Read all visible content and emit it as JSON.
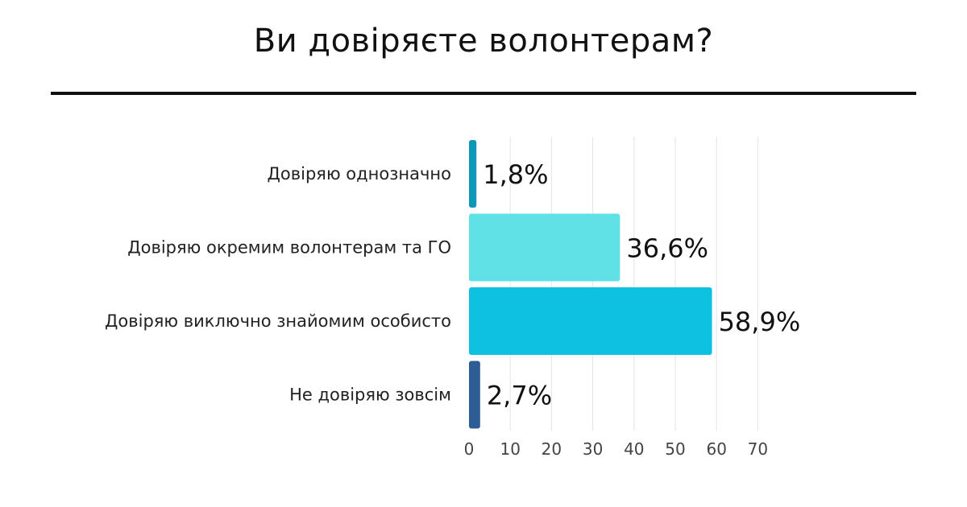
{
  "header": {
    "title": "Ви довіряєте волонтерам?"
  },
  "chart_data": {
    "type": "bar",
    "orientation": "horizontal",
    "categories": [
      "Довіряю однозначно",
      "Довіряю окремим волонтерам та ГО",
      "Довіряю виключно знайомим особисто",
      "Не довіряю зовсім"
    ],
    "values": [
      1.8,
      36.6,
      58.9,
      2.7
    ],
    "value_labels": [
      "1,8%",
      "36,6%",
      "58,9%",
      "2,7%"
    ],
    "bar_colors": [
      "#0e97b6",
      "#5fe1e6",
      "#0ec1e0",
      "#2e5c94"
    ],
    "x_ticks": [
      0,
      10,
      20,
      30,
      40,
      50,
      60,
      70
    ],
    "xlim": [
      0,
      70
    ],
    "grid": "vertical",
    "legend": "none"
  }
}
